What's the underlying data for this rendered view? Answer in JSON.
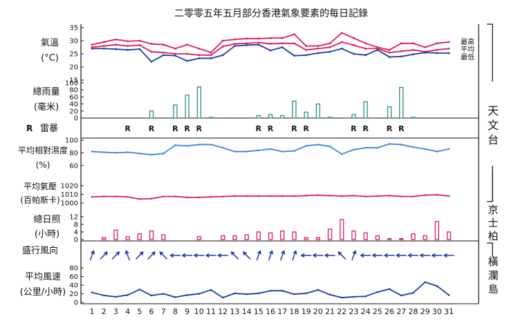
{
  "chart_data": {
    "type": "line",
    "title": "二零零五年五月部分香港氣象要素的每日記錄",
    "days": [
      1,
      2,
      3,
      4,
      5,
      6,
      7,
      8,
      9,
      10,
      11,
      12,
      13,
      14,
      15,
      16,
      17,
      18,
      19,
      20,
      21,
      22,
      23,
      24,
      25,
      26,
      27,
      28,
      29,
      30,
      31
    ],
    "stations": {
      "hko": "天文台",
      "kp": "京士柏",
      "wl": "橫瀾島"
    },
    "colors": {
      "max": "#e0185c",
      "mean": "#e0185c",
      "min": "#1a3aa6",
      "rain": "#2e8a78",
      "rh": "#3a86d8",
      "pressure": "#e0185c",
      "sunshine": "#e0185c",
      "wind": "#1a3aa6",
      "axis": "#111111"
    },
    "temperature": {
      "label": [
        "氣溫",
        "(°C)"
      ],
      "ticks": [
        15,
        20,
        25,
        30,
        35
      ],
      "ylim": [
        15,
        35
      ],
      "series": [
        {
          "name": "最高",
          "values": [
            28.5,
            29.5,
            30.5,
            29.8,
            30.0,
            28.8,
            28.5,
            27.0,
            28.5,
            27.0,
            25.5,
            30.0,
            30.5,
            30.8,
            30.8,
            31.0,
            31.0,
            32.5,
            28.0,
            28.0,
            29.0,
            33.0,
            31.0,
            29.0,
            27.5,
            26.5,
            29.0,
            29.0,
            27.5,
            29.0,
            29.5
          ]
        },
        {
          "name": "平均",
          "values": [
            27.5,
            28.0,
            28.5,
            28.0,
            28.3,
            25.8,
            25.5,
            25.0,
            25.0,
            24.5,
            24.5,
            27.8,
            28.8,
            29.0,
            29.3,
            28.8,
            29.0,
            29.0,
            26.5,
            27.0,
            27.5,
            29.5,
            28.3,
            27.0,
            27.0,
            25.5,
            26.0,
            26.5,
            25.8,
            26.5,
            27.0
          ]
        },
        {
          "name": "最低",
          "values": [
            27.0,
            27.0,
            26.8,
            26.5,
            26.8,
            22.0,
            24.5,
            24.3,
            22.3,
            23.3,
            23.3,
            24.5,
            28.0,
            28.3,
            28.5,
            26.3,
            27.5,
            24.3,
            24.5,
            25.3,
            25.8,
            27.0,
            25.0,
            24.5,
            26.5,
            23.8,
            24.0,
            24.8,
            25.5,
            25.3,
            25.3
          ]
        }
      ]
    },
    "rainfall": {
      "label": [
        "總雨量",
        "(毫米)"
      ],
      "ticks": [
        0,
        20,
        40,
        60,
        80,
        100
      ],
      "ylim": [
        0,
        100
      ],
      "values": [
        0,
        0,
        0,
        0,
        0,
        20,
        0,
        37,
        65,
        88,
        2,
        0,
        0,
        0,
        7,
        10,
        7,
        48,
        17,
        40,
        2,
        0,
        10,
        46,
        0,
        32,
        87,
        2,
        0,
        0,
        0
      ]
    },
    "thunderstorm": {
      "label": "雷暴",
      "symbol": "R",
      "days": [
        4,
        6,
        8,
        9,
        10,
        15,
        16,
        18,
        19,
        23,
        24,
        26,
        27
      ]
    },
    "humidity": {
      "label": [
        "平均相對濕度",
        "(%)"
      ],
      "ticks": [
        60,
        80,
        100
      ],
      "ylim": [
        50,
        100
      ],
      "values": [
        82,
        81,
        80,
        81,
        79,
        77,
        79,
        92,
        91,
        93,
        93,
        88,
        82,
        82,
        84,
        86,
        82,
        83,
        91,
        93,
        90,
        78,
        85,
        88,
        88,
        94,
        93,
        89,
        86,
        82,
        86
      ]
    },
    "pressure": {
      "label": [
        "平均氣壓",
        "(百帕斯卡)"
      ],
      "ticks": [
        1000,
        1010,
        1020
      ],
      "ylim": [
        1000,
        1020
      ],
      "values": [
        1007,
        1007.5,
        1007.5,
        1007,
        1004.5,
        1005,
        1007.5,
        1007.5,
        1006.5,
        1006.5,
        1007,
        1007.5,
        1008,
        1008,
        1008,
        1008,
        1008,
        1008,
        1008.5,
        1009,
        1008.5,
        1008,
        1008.5,
        1007.5,
        1008,
        1008.5,
        1007.5,
        1007.5,
        1009,
        1009.5,
        1008
      ]
    },
    "sunshine": {
      "label": [
        "總日照",
        "(小時)"
      ],
      "ticks": [
        0,
        4,
        8,
        12
      ],
      "ylim": [
        0,
        12
      ],
      "values": [
        0,
        1,
        5,
        1.5,
        3,
        4.5,
        2.5,
        0,
        0,
        1.5,
        0,
        2,
        2,
        2.5,
        4,
        3.5,
        4.5,
        4,
        1,
        1,
        5.5,
        10.5,
        4.5,
        3.5,
        2,
        0.5,
        0.5,
        3,
        2,
        9.5,
        4
      ]
    },
    "wind_direction": {
      "label": "盛行風向",
      "degrees_to": [
        20,
        45,
        45,
        340,
        45,
        45,
        315,
        270,
        270,
        270,
        270,
        270,
        315,
        315,
        20,
        20,
        20,
        20,
        270,
        270,
        270,
        315,
        20,
        270,
        270,
        270,
        270,
        270,
        270,
        270,
        270
      ]
    },
    "wind_speed": {
      "label": [
        "平均風速",
        "(公里/小時)"
      ],
      "ticks": [
        0,
        20,
        40,
        60,
        80
      ],
      "ylim": [
        0,
        90
      ],
      "values": [
        23,
        16,
        13,
        17,
        30,
        16,
        20,
        12,
        17,
        20,
        29,
        11,
        21,
        19,
        21,
        27,
        27,
        19,
        21,
        29,
        18,
        11,
        13,
        14,
        24,
        31,
        16,
        22,
        47,
        38,
        17
      ]
    }
  }
}
